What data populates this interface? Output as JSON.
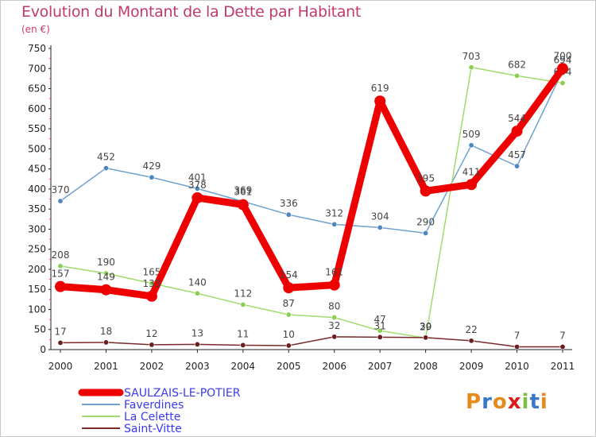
{
  "title": "Evolution du Montant de la Dette par Habitant",
  "subtitle": "(en €)",
  "logo_text": "Proxiti",
  "colors": {
    "title": "#c03a6e",
    "axis": "#222222",
    "legend_text": "#3a3af0"
  },
  "chart_data": {
    "type": "line",
    "x": [
      "2000",
      "2001",
      "2002",
      "2003",
      "2004",
      "2005",
      "2006",
      "2007",
      "2008",
      "2009",
      "2010",
      "2011"
    ],
    "ylim": [
      0,
      750
    ],
    "yticks": [
      0,
      50,
      100,
      150,
      200,
      250,
      300,
      350,
      400,
      450,
      500,
      550,
      600,
      650,
      700,
      750
    ],
    "grid": false,
    "legend_position": "bottom-left",
    "series": [
      {
        "name": "Faverdines",
        "color": "#6fa2cf",
        "point_color": "#4f86be",
        "values": [
          370,
          452,
          429,
          401,
          369,
          336,
          312,
          304,
          290,
          509,
          457,
          694
        ],
        "labels": [
          "370",
          "452",
          "429",
          "401",
          "369",
          "336",
          "312",
          "304",
          "290",
          "509",
          "457",
          "694"
        ]
      },
      {
        "name": "La Celette",
        "color": "#9fdc6c",
        "point_color": "#8ccf55",
        "values": [
          208,
          190,
          165,
          140,
          112,
          87,
          80,
          47,
          29,
          703,
          682,
          664
        ],
        "labels": [
          "208",
          "190",
          "165",
          "140",
          "112",
          "87",
          "80",
          "47",
          "29",
          "703",
          "682",
          "664"
        ]
      },
      {
        "name": "Saint-Vitte",
        "color": "#7a2a2a",
        "point_color": "#6a1f1f",
        "values": [
          17,
          18,
          12,
          13,
          11,
          10,
          32,
          31,
          30,
          22,
          7,
          7
        ],
        "labels": [
          "17",
          "18",
          "12",
          "13",
          "11",
          "10",
          "32",
          "31",
          "30",
          "22",
          "7",
          "7"
        ]
      },
      {
        "name": "SAULZAIS-LE-POTIER",
        "color": "#ee0000",
        "point_color": "#ee0000",
        "values": [
          157,
          149,
          133,
          378,
          361,
          154,
          161,
          619,
          395,
          411,
          544,
          700
        ],
        "labels": [
          "157",
          "149",
          "133",
          "378",
          "361",
          "154",
          "161",
          "619",
          "395",
          "411",
          "544",
          "700"
        ]
      }
    ],
    "legend": [
      "SAULZAIS-LE-POTIER",
      "Faverdines",
      "La Celette",
      "Saint-Vitte"
    ]
  }
}
